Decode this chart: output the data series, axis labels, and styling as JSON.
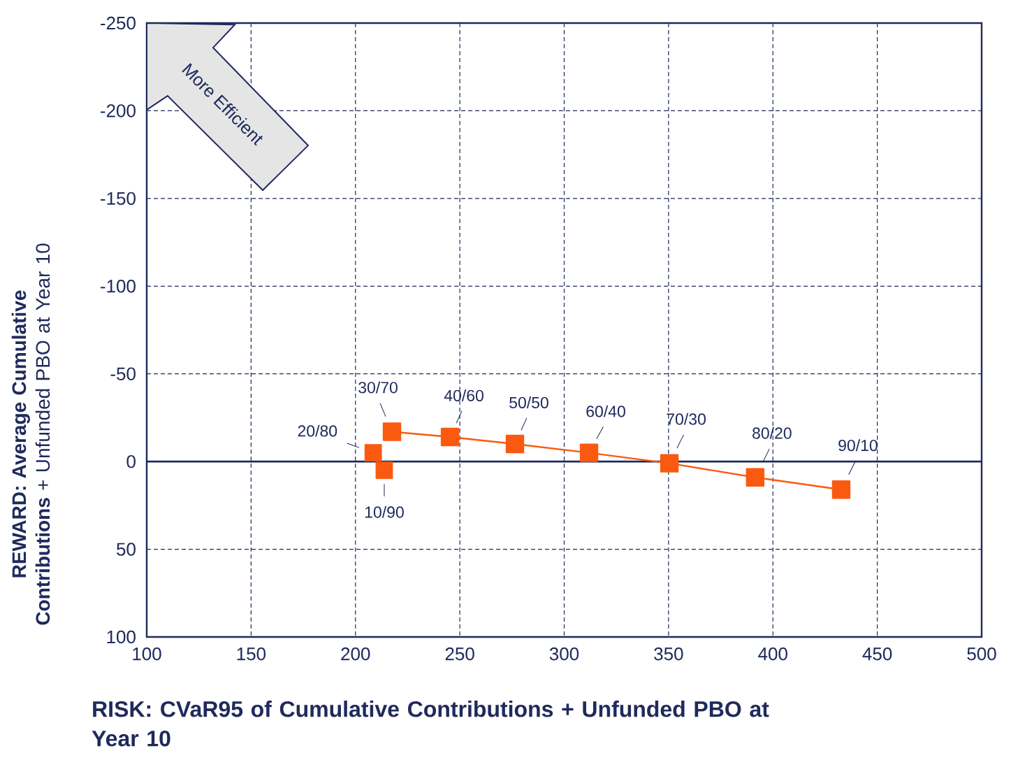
{
  "chart_data": {
    "type": "line",
    "xlabel": "RISK: CVaR95 of Cumulative Contributions + Unfunded PBO at Year 10",
    "ylabel": "**REWARD: Average Cumulative Contributions** + Unfunded PBO at Year 10",
    "xlim": [
      100,
      500
    ],
    "xticks": [
      100,
      150,
      200,
      250,
      300,
      350,
      400,
      450,
      500
    ],
    "ylim": [
      100,
      -250
    ],
    "yticks": [
      -250,
      -200,
      -150,
      -100,
      -50,
      0,
      50,
      100
    ],
    "grid": true,
    "marker": "square",
    "line_style": "solid",
    "series": [
      {
        "type": "scatter",
        "color": "#fa5a0f",
        "x": [
          213.8,
          208.5
        ],
        "values": [
          5,
          -5
        ]
      },
      {
        "color": "#fa5a0f",
        "x": [
          217.5,
          245.3,
          276.4,
          311.9,
          350.4,
          391.5,
          432.7
        ],
        "values": [
          -17,
          -14,
          -10,
          -5,
          1,
          9,
          16
        ]
      }
    ],
    "ref_lines": [
      {
        "axis": "y",
        "value": 0,
        "color": "#1f2a5c"
      }
    ],
    "annotations": [
      {
        "text": "10/90",
        "x": 213.8,
        "y": 5
      },
      {
        "text": "20/80",
        "x": 208.5,
        "y": -5
      },
      {
        "text": "30/70",
        "x": 217.5,
        "y": -17
      },
      {
        "text": "40/60",
        "x": 245.3,
        "y": -14
      },
      {
        "text": "50/50",
        "x": 276.4,
        "y": -10
      },
      {
        "text": "60/40",
        "x": 311.9,
        "y": -5
      },
      {
        "text": "70/30",
        "x": 350.4,
        "y": 1
      },
      {
        "text": "80/20",
        "x": 391.5,
        "y": 9
      },
      {
        "text": "90/10",
        "x": 432.7,
        "y": 16
      },
      "More Efficient"
    ]
  }
}
